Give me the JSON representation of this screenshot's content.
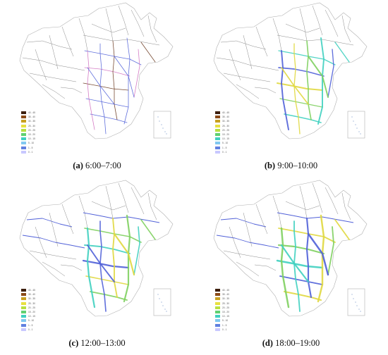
{
  "panels": [
    {
      "letter": "(a)",
      "time": "6:00–7:00",
      "level": 0
    },
    {
      "letter": "(b)",
      "time": "9:00–10:00",
      "level": 1
    },
    {
      "letter": "(c)",
      "time": "12:00–13:00",
      "level": 2
    },
    {
      "letter": "(d)",
      "time": "18:00–19:00",
      "level": 3
    }
  ],
  "legend": {
    "items": [
      {
        "label": "40 - 45",
        "color": "#3d1f0e"
      },
      {
        "label": "35 - 40",
        "color": "#8a4a18"
      },
      {
        "label": "30 - 35",
        "color": "#c8a020"
      },
      {
        "label": "25 - 30",
        "color": "#e8e040"
      },
      {
        "label": "20 - 25",
        "color": "#b8e040"
      },
      {
        "label": "15 - 20",
        "color": "#60d070"
      },
      {
        "label": "10 - 15",
        "color": "#40d0c0"
      },
      {
        "label": "5 - 10",
        "color": "#80c8f0"
      },
      {
        "label": "1 - 5",
        "color": "#6080e0"
      },
      {
        "label": "0 - 1",
        "color": "#c8c8ff"
      }
    ]
  },
  "colors": {
    "network_gray": "#8a8a8a",
    "border": "#b0b0b0",
    "blue": "#5060d8",
    "cyan": "#40d0c0",
    "green": "#80d060",
    "yellow": "#e0d840",
    "brown": "#6a3a20",
    "pink": "#d070c0"
  }
}
